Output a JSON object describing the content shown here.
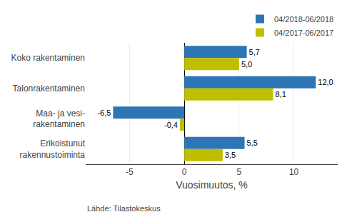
{
  "chart_data": {
    "type": "bar",
    "orientation": "horizontal",
    "categories": [
      "Koko rakentaminen",
      "Talonrakentaminen",
      "Maa- ja vesi-\nrakentaminen",
      "Erikoistunut\nrakennustoiminta"
    ],
    "series": [
      {
        "name": "04/2018-06/2018",
        "color": "#2E75B6",
        "values": [
          5.7,
          12.0,
          -6.5,
          5.5
        ],
        "value_labels": [
          "5,7",
          "12,0",
          "-6,5",
          "5,5"
        ]
      },
      {
        "name": "04/2017-06/2017",
        "color": "#BFBF00",
        "values": [
          5.0,
          8.1,
          -0.4,
          3.5
        ],
        "value_labels": [
          "5,0",
          "8,1",
          "-0,4",
          "3,5"
        ]
      }
    ],
    "xlabel": "Vuosimuutos, %",
    "xlim": [
      -9,
      14
    ],
    "xticks": [
      -5,
      0,
      5,
      10
    ],
    "grid": true,
    "legend": "upper right",
    "data_labels": true,
    "annotations": [
      "Lähde: Tilastokeskus"
    ]
  }
}
